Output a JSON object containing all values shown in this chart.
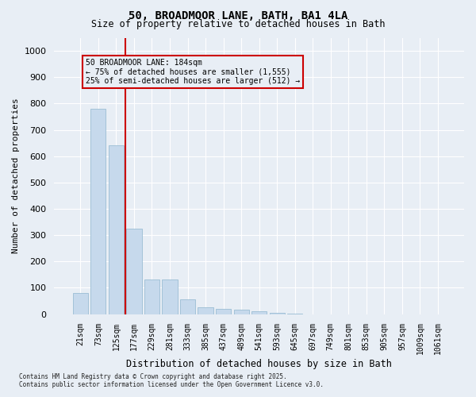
{
  "title_line1": "50, BROADMOOR LANE, BATH, BA1 4LA",
  "title_line2": "Size of property relative to detached houses in Bath",
  "xlabel": "Distribution of detached houses by size in Bath",
  "ylabel": "Number of detached properties",
  "annotation_line1": "50 BROADMOOR LANE: 184sqm",
  "annotation_line2": "← 75% of detached houses are smaller (1,555)",
  "annotation_line3": "25% of semi-detached houses are larger (512) →",
  "categories": [
    "21sqm",
    "73sqm",
    "125sqm",
    "177sqm",
    "229sqm",
    "281sqm",
    "333sqm",
    "385sqm",
    "437sqm",
    "489sqm",
    "541sqm",
    "593sqm",
    "645sqm",
    "697sqm",
    "749sqm",
    "801sqm",
    "853sqm",
    "905sqm",
    "957sqm",
    "1009sqm",
    "1061sqm"
  ],
  "bar_values": [
    80,
    780,
    640,
    325,
    130,
    130,
    55,
    25,
    20,
    18,
    10,
    5,
    3,
    0,
    0,
    0,
    0,
    0,
    0,
    0,
    0
  ],
  "bar_color": "#c6d9ec",
  "bar_edgecolor": "#9bbdd4",
  "vline_x": 2.5,
  "vline_color": "#cc0000",
  "ylim_max": 1050,
  "yticks": [
    0,
    100,
    200,
    300,
    400,
    500,
    600,
    700,
    800,
    900,
    1000
  ],
  "bg_color": "#e8eef5",
  "grid_color": "#ffffff",
  "annotation_box_color": "#cc0000",
  "footer_line1": "Contains HM Land Registry data © Crown copyright and database right 2025.",
  "footer_line2": "Contains public sector information licensed under the Open Government Licence v3.0."
}
